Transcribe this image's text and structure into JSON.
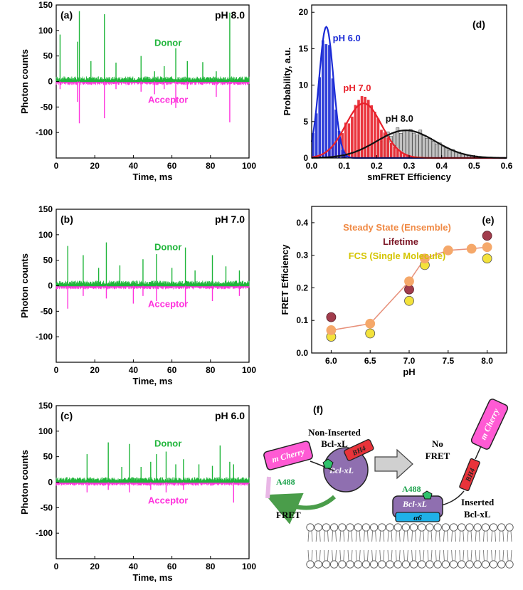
{
  "colors": {
    "donor": "#1fb53a",
    "acceptor": "#ff33dd",
    "ph6": "#1b2bd6",
    "ph7": "#e8202a",
    "ph8": "#111111",
    "ph8fill": "#bdbdbd",
    "steady": "#f5a86a",
    "lifetime": "#a13c4c",
    "fcs": "#f3e23b"
  },
  "chart_data": [
    {
      "type": "line",
      "panel": "(a)",
      "condition": "pH 8.0",
      "xlabel": "Time, ms",
      "ylabel": "Photon counts",
      "xlim": [
        0,
        100
      ],
      "ylim": [
        -150,
        150
      ],
      "xticks": [
        0,
        20,
        40,
        60,
        80,
        100
      ],
      "yticks": [
        150,
        100,
        50,
        0,
        -50,
        -100
      ],
      "series": [
        {
          "name": "Donor",
          "label": "Donor",
          "bursts": [
            [
              2,
              92
            ],
            [
              12,
              138
            ],
            [
              11,
              78
            ],
            [
              18,
              40
            ],
            [
              25,
              132
            ],
            [
              31,
              37
            ],
            [
              44,
              50
            ],
            [
              51,
              20
            ],
            [
              56,
              30
            ],
            [
              62,
              65
            ],
            [
              68,
              40
            ],
            [
              76,
              38
            ],
            [
              83,
              20
            ],
            [
              90,
              135
            ]
          ]
        },
        {
          "name": "Acceptor",
          "label": "Acceptor",
          "bursts": [
            [
              2,
              -15
            ],
            [
              12,
              -82
            ],
            [
              11,
              -40
            ],
            [
              25,
              -72
            ],
            [
              31,
              -15
            ],
            [
              44,
              -20
            ],
            [
              51,
              -25
            ],
            [
              56,
              -15
            ],
            [
              62,
              -52
            ],
            [
              68,
              -15
            ],
            [
              83,
              -30
            ],
            [
              90,
              -80
            ]
          ]
        }
      ]
    },
    {
      "type": "line",
      "panel": "(b)",
      "condition": "pH 7.0",
      "xlabel": "Time, ms",
      "ylabel": "Photon counts",
      "xlim": [
        0,
        100
      ],
      "ylim": [
        -150,
        150
      ],
      "xticks": [
        0,
        20,
        40,
        60,
        80,
        100
      ],
      "yticks": [
        150,
        100,
        50,
        0,
        -50,
        -100
      ],
      "series": [
        {
          "name": "Donor",
          "label": "Donor",
          "bursts": [
            [
              6,
              78
            ],
            [
              14,
              60
            ],
            [
              22,
              35
            ],
            [
              26,
              85
            ],
            [
              33,
              40
            ],
            [
              45,
              52
            ],
            [
              52,
              62
            ],
            [
              60,
              35
            ],
            [
              67,
              75
            ],
            [
              72,
              30
            ],
            [
              81,
              60
            ],
            [
              88,
              38
            ],
            [
              95,
              30
            ]
          ]
        },
        {
          "name": "Acceptor",
          "label": "Acceptor",
          "bursts": [
            [
              6,
              -45
            ],
            [
              14,
              -20
            ],
            [
              26,
              -25
            ],
            [
              40,
              -35
            ],
            [
              45,
              -20
            ],
            [
              52,
              -30
            ],
            [
              67,
              -40
            ],
            [
              81,
              -30
            ],
            [
              95,
              -20
            ]
          ]
        }
      ]
    },
    {
      "type": "line",
      "panel": "(c)",
      "condition": "pH 6.0",
      "xlabel": "Time, ms",
      "ylabel": "Photon counts",
      "xlim": [
        0,
        100
      ],
      "ylim": [
        -150,
        150
      ],
      "xticks": [
        0,
        20,
        40,
        60,
        80,
        100
      ],
      "yticks": [
        150,
        100,
        50,
        0,
        -50,
        -100
      ],
      "series": [
        {
          "name": "Donor",
          "label": "Donor",
          "bursts": [
            [
              16,
              55
            ],
            [
              27,
              78
            ],
            [
              34,
              30
            ],
            [
              38,
              75
            ],
            [
              44,
              30
            ],
            [
              49,
              40
            ],
            [
              52,
              55
            ],
            [
              57,
              60
            ],
            [
              62,
              35
            ],
            [
              66,
              45
            ],
            [
              74,
              35
            ],
            [
              81,
              32
            ],
            [
              85,
              72
            ],
            [
              90,
              40
            ],
            [
              92,
              35
            ]
          ]
        },
        {
          "name": "Acceptor",
          "label": "Acceptor",
          "bursts": [
            [
              16,
              -20
            ],
            [
              27,
              -15
            ],
            [
              38,
              -20
            ],
            [
              49,
              -15
            ],
            [
              57,
              -20
            ],
            [
              66,
              -15
            ],
            [
              92,
              -40
            ]
          ]
        }
      ]
    },
    {
      "type": "histogram",
      "panel": "(d)",
      "xlabel": "smFRET Efficiency",
      "ylabel": "Probability, a.u.",
      "xlim": [
        0,
        0.6
      ],
      "ylim": [
        0,
        21
      ],
      "xticks": [
        0.0,
        0.1,
        0.2,
        0.3,
        0.4,
        0.5,
        0.6
      ],
      "yticks": [
        0,
        5,
        10,
        15,
        20
      ],
      "series": [
        {
          "name": "pH 6.0",
          "label": "pH 6.0",
          "center": 0.045,
          "sigma": 0.022,
          "amp": 18
        },
        {
          "name": "pH 7.0",
          "label": "pH 7.0",
          "center": 0.16,
          "sigma": 0.055,
          "amp": 7.5
        },
        {
          "name": "pH 8.0",
          "label": "pH 8.0",
          "center": 0.29,
          "sigma": 0.09,
          "amp": 3.8
        }
      ]
    },
    {
      "type": "scatter",
      "panel": "(e)",
      "xlabel": "pH",
      "ylabel": "FRET Efficiency",
      "xlim": [
        5.75,
        8.25
      ],
      "ylim": [
        0,
        0.45
      ],
      "xticks": [
        6.0,
        6.5,
        7.0,
        7.5,
        8.0
      ],
      "yticks": [
        0.0,
        0.1,
        0.2,
        0.3,
        0.4
      ],
      "series": [
        {
          "name": "Steady State (Ensemble)",
          "label": "Steady State (Ensemble)",
          "x": [
            6.0,
            6.5,
            7.0,
            7.2,
            7.5,
            7.8,
            8.0
          ],
          "y": [
            0.07,
            0.09,
            0.22,
            0.29,
            0.315,
            0.32,
            0.325
          ]
        },
        {
          "name": "Lifetime",
          "label": "Lifetime",
          "x": [
            6.0,
            7.0,
            8.0
          ],
          "y": [
            0.11,
            0.195,
            0.36
          ]
        },
        {
          "name": "FCS (Single Molecule)",
          "label": "FCS (Single Molecule)",
          "x": [
            6.0,
            6.5,
            7.0,
            7.2,
            8.0
          ],
          "y": [
            0.05,
            0.06,
            0.16,
            0.27,
            0.29
          ]
        }
      ]
    }
  ],
  "diagram": {
    "panel": "(f)",
    "non_inserted": "Non-Inserted",
    "non_inserted_2": "Bcl-xL",
    "no_fret": "No",
    "no_fret_2": "FRET",
    "fret": "FRET",
    "inserted": "Inserted",
    "inserted_2": "Bcl-xL",
    "mcherry": "m Cherry",
    "bh4": "BH4",
    "a488": "A488",
    "bclxl": "Bcl-xL",
    "alpha6": "α6"
  }
}
